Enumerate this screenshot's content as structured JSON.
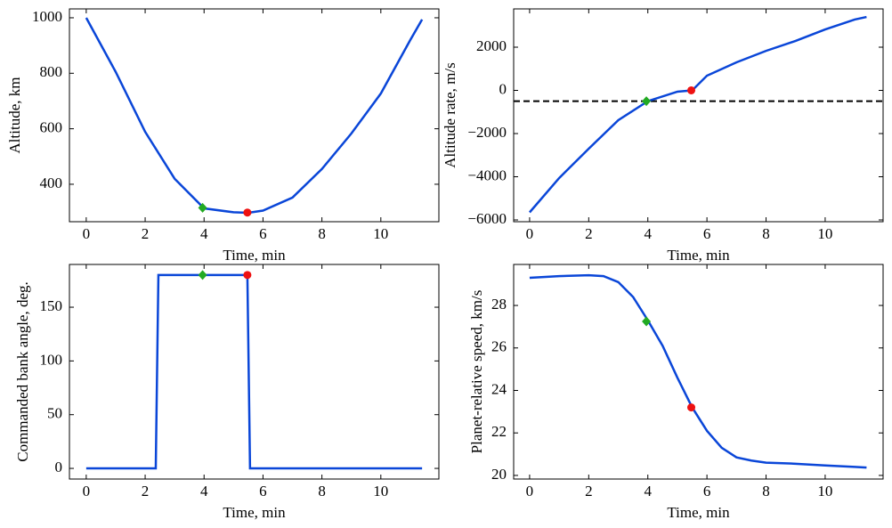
{
  "chart_data": [
    {
      "type": "line",
      "x_label": "Time, min",
      "y_label": "Altitude, km",
      "xlim": [
        -0.57,
        11.97
      ],
      "xticks": [
        0,
        2,
        4,
        6,
        8,
        10
      ],
      "ylim": [
        265,
        1032
      ],
      "yticks": [
        400,
        600,
        800,
        1000
      ],
      "x": [
        0,
        1,
        2,
        3,
        4,
        5,
        5.5,
        6,
        7,
        8,
        9,
        10,
        11,
        11.4
      ],
      "series": [
        {
          "color": "#0a46d8",
          "values": [
            1000,
            805,
            589,
            420,
            313,
            299,
            297,
            305,
            352,
            455,
            583,
            727,
            920,
            994
          ]
        }
      ],
      "points": [
        {
          "x": 3.95,
          "y": 315,
          "color": "#22aa22",
          "marker": "diamond"
        },
        {
          "x": 5.47,
          "y": 298,
          "color": "#ee1111",
          "marker": "circle"
        }
      ]
    },
    {
      "type": "line",
      "x_label": "Time, min",
      "y_label": "Altitude rate, m/s",
      "xlim": [
        -0.54,
        11.96
      ],
      "xticks": [
        0,
        2,
        4,
        6,
        8,
        10
      ],
      "ylim": [
        -6083,
        3773
      ],
      "yticks": [
        {
          "value": -6000,
          "label": "−6000"
        },
        {
          "value": -4000,
          "label": "−4000"
        },
        {
          "value": -2000,
          "label": "−2000"
        },
        0,
        2000
      ],
      "x": [
        0,
        1,
        2,
        3,
        4,
        5,
        5.5,
        6,
        7,
        8,
        9,
        10,
        11,
        11.4
      ],
      "series": [
        {
          "color": "#0a46d8",
          "values": [
            -5650,
            -4060,
            -2700,
            -1380,
            -500,
            -60,
            0,
            680,
            1300,
            1830,
            2290,
            2820,
            3280,
            3400
          ]
        }
      ],
      "hlines": [
        {
          "y": -500,
          "color": "#000000",
          "style": "dashed"
        }
      ],
      "points": [
        {
          "x": 3.95,
          "y": -500,
          "color": "#22aa22",
          "marker": "diamond"
        },
        {
          "x": 5.47,
          "y": 0,
          "color": "#ee1111",
          "marker": "circle"
        }
      ]
    },
    {
      "type": "line",
      "x_label": "Time, min",
      "y_label": "Commanded bank angle, deg.",
      "xlim": [
        -0.57,
        11.97
      ],
      "xticks": [
        0,
        2,
        4,
        6,
        8,
        10
      ],
      "ylim": [
        -9.9,
        189.8
      ],
      "yticks": [
        0,
        50,
        100,
        150
      ],
      "x": [
        0,
        2.36,
        2.45,
        5.47,
        5.56,
        11.4
      ],
      "series": [
        {
          "color": "#0a46d8",
          "values": [
            0,
            0,
            180,
            180,
            0,
            0
          ]
        }
      ],
      "points": [
        {
          "x": 3.95,
          "y": 180,
          "color": "#22aa22",
          "marker": "diamond"
        },
        {
          "x": 5.47,
          "y": 180,
          "color": "#ee1111",
          "marker": "circle"
        }
      ]
    },
    {
      "type": "line",
      "x_label": "Time, min",
      "y_label": "Planet-relative speed, km/s",
      "xlim": [
        -0.54,
        11.96
      ],
      "xticks": [
        0,
        2,
        4,
        6,
        8,
        10
      ],
      "ylim": [
        19.83,
        29.93
      ],
      "yticks": [
        20,
        22,
        24,
        26,
        28
      ],
      "x": [
        0,
        1,
        2,
        2.5,
        3,
        3.5,
        4,
        4.5,
        5,
        5.5,
        6,
        6.5,
        7,
        7.5,
        8,
        9,
        10,
        11,
        11.4
      ],
      "series": [
        {
          "color": "#0a46d8",
          "values": [
            29.3,
            29.38,
            29.42,
            29.38,
            29.1,
            28.4,
            27.3,
            26.1,
            24.6,
            23.2,
            22.1,
            21.3,
            20.85,
            20.7,
            20.6,
            20.55,
            20.47,
            20.4,
            20.37
          ]
        }
      ],
      "points": [
        {
          "x": 3.95,
          "y": 27.25,
          "color": "#22aa22",
          "marker": "diamond"
        },
        {
          "x": 5.47,
          "y": 23.2,
          "color": "#ee1111",
          "marker": "circle"
        }
      ]
    }
  ]
}
